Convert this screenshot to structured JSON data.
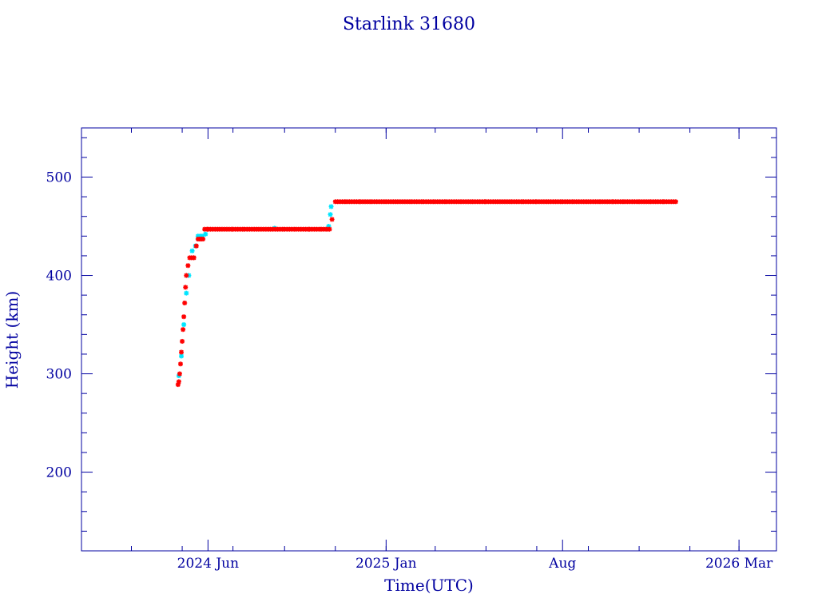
{
  "chart_data": {
    "type": "scatter",
    "title": "Starlink 31680",
    "xlabel": "Time(UTC)",
    "ylabel": "Height (km)",
    "x_date_range": [
      "2024-01-01",
      "2026-04-15"
    ],
    "ylim": [
      120,
      550
    ],
    "x_ticks": [
      {
        "date": "2024-06-01",
        "label": "2024 Jun"
      },
      {
        "date": "2025-01-01",
        "label": "2025 Jan"
      },
      {
        "date": "2025-08-01",
        "label": "Aug"
      },
      {
        "date": "2026-03-01",
        "label": "2026 Mar"
      }
    ],
    "y_ticks": [
      {
        "value": 200,
        "label": "200"
      },
      {
        "value": 300,
        "label": "300"
      },
      {
        "value": 400,
        "label": "400"
      },
      {
        "value": 500,
        "label": "500"
      }
    ],
    "grid": false,
    "colors": {
      "frame": "#0000a0",
      "primary_marker": "#ff0000",
      "secondary_marker": "#00e5ff"
    },
    "series": [
      {
        "marker": "asterisk",
        "color": "#ff0000",
        "x": [
          "2024-04-26",
          "2024-04-27",
          "2024-04-28",
          "2024-04-29",
          "2024-04-30",
          "2024-05-01",
          "2024-05-02",
          "2024-05-03",
          "2024-05-04",
          "2024-05-05",
          "2024-05-06",
          "2024-05-08",
          "2024-05-10",
          "2024-05-12",
          "2024-05-15",
          "2024-05-18",
          "2024-05-20",
          "2024-05-22",
          "2024-05-24",
          "2024-05-26",
          "2024-05-28",
          "2024-06-01",
          "2024-06-15",
          "2024-07-01",
          "2024-07-15",
          "2024-08-01",
          "2024-08-15",
          "2024-09-01",
          "2024-09-15",
          "2024-10-01",
          "2024-10-15",
          "2024-10-23",
          "2024-10-25",
          "2024-10-28",
          "2024-11-01",
          "2024-11-15",
          "2024-12-01",
          "2024-12-15",
          "2025-01-01",
          "2025-01-15",
          "2025-02-01",
          "2025-02-15",
          "2025-03-01",
          "2025-03-15",
          "2025-04-01",
          "2025-04-15",
          "2025-05-01",
          "2025-05-15",
          "2025-06-01",
          "2025-06-15",
          "2025-07-01",
          "2025-07-15",
          "2025-08-01",
          "2025-08-15",
          "2025-09-01",
          "2025-09-15",
          "2025-10-01",
          "2025-10-15",
          "2025-11-01",
          "2025-11-15",
          "2025-12-01",
          "2025-12-15"
        ],
        "y": [
          289,
          292,
          300,
          310,
          322,
          333,
          345,
          358,
          372,
          388,
          400,
          410,
          418,
          418,
          418,
          430,
          437,
          437,
          437,
          437,
          447,
          447,
          447,
          447,
          447,
          447,
          447,
          447,
          447,
          447,
          447,
          447,
          447,
          457,
          475,
          475,
          475,
          475,
          475,
          475,
          475,
          475,
          475,
          475,
          475,
          475,
          475,
          475,
          475,
          475,
          475,
          475,
          475,
          475,
          475,
          475,
          475,
          475,
          475,
          475,
          475,
          475
        ]
      },
      {
        "marker": "asterisk",
        "color": "#00e5ff",
        "x": [
          "2024-04-27",
          "2024-04-30",
          "2024-05-03",
          "2024-05-06",
          "2024-05-09",
          "2024-05-13",
          "2024-05-17",
          "2024-05-20",
          "2024-05-25",
          "2024-05-29",
          "2024-08-20",
          "2024-10-24",
          "2024-10-26",
          "2024-10-27"
        ],
        "y": [
          298,
          318,
          350,
          382,
          400,
          425,
          430,
          440,
          440,
          442,
          448,
          450,
          462,
          470
        ]
      }
    ]
  }
}
